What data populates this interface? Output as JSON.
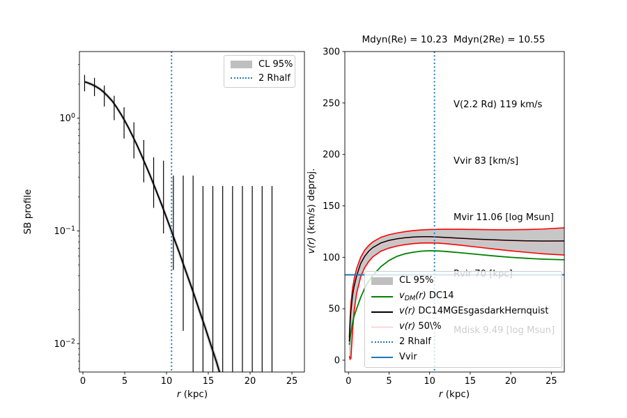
{
  "figure": {
    "bg": "#ffffff"
  },
  "colors": {
    "blue": "#1f77b4",
    "green": "#008000",
    "red": "#ff0000",
    "pink": "#ffb6c1",
    "band": "rgba(130,130,130,0.45)",
    "black": "#000000"
  },
  "left_panel": {
    "ylabel": "SB profile",
    "xlabel_math": "r",
    "xlabel_rest": " (kpc)",
    "x_ticks": [
      0,
      5,
      10,
      15,
      20,
      25
    ],
    "y_ticks_exp": [
      0,
      -1,
      -2
    ],
    "legend": {
      "items": [
        {
          "rest": "CL 95%"
        },
        {
          "rest": "2 Rhalf"
        }
      ]
    }
  },
  "right_panel": {
    "title": "Mdyn(Re) = 10.23  Mdyn(2Re) = 10.55",
    "ylabel_math": "v(r)",
    "ylabel_rest": " (km/s) deproj.",
    "xlabel_math": "r",
    "xlabel_rest": " (kpc)",
    "annotations": [
      "V(2.2 Rd) 119 km/s",
      "Vvir 83 [km/s]",
      "Mvir 11.06 [log Msun]",
      "Rvir 70 [kpc]",
      "Mdisk 9.49 [log Msun]"
    ],
    "x_ticks": [
      0,
      5,
      10,
      15,
      20,
      25
    ],
    "y_ticks": [
      0,
      50,
      100,
      150,
      200,
      250,
      300
    ],
    "legend": {
      "items": [
        {
          "math": "",
          "sub": "",
          "math2": "",
          "rest": "CL 95%"
        },
        {
          "math": "v",
          "sub": "DM",
          "math2": "(r)",
          "rest": " DC14"
        },
        {
          "math": "v",
          "sub": "",
          "math2": "(r)",
          "rest": " DC14MGEsgasdarkHernquist"
        },
        {
          "math": "v",
          "sub": "",
          "math2": "(r)",
          "rest": " 50\\%"
        },
        {
          "math": "",
          "sub": "",
          "math2": "",
          "rest": "2 Rhalf"
        },
        {
          "math": "",
          "sub": "",
          "math2": "",
          "rest": "Vvir"
        }
      ]
    }
  },
  "chart_data": [
    {
      "type": "line",
      "panel": "left",
      "title": "",
      "xlabel": "r (kpc)",
      "ylabel": "SB profile",
      "xscale": "linear",
      "yscale": "log",
      "xlim": [
        -0.42,
        26.5
      ],
      "ylim": [
        0.0056,
        3.9
      ],
      "vline_2rhalf": 10.6,
      "model_r": [
        0.2,
        0.5,
        1,
        1.5,
        2,
        2.5,
        3,
        3.5,
        4,
        4.5,
        5,
        5.5,
        6,
        6.5,
        7,
        7.5,
        8,
        8.5,
        9,
        9.5,
        10,
        10.5,
        11,
        11.5,
        12,
        12.5,
        13,
        13.5,
        14,
        14.5,
        15,
        15.5,
        16,
        16.6
      ],
      "model_sb": [
        2.1,
        2.07,
        2.0,
        1.92,
        1.82,
        1.7,
        1.56,
        1.42,
        1.26,
        1.1,
        0.95,
        0.81,
        0.68,
        0.57,
        0.47,
        0.385,
        0.315,
        0.255,
        0.205,
        0.165,
        0.131,
        0.104,
        0.082,
        0.065,
        0.051,
        0.04,
        0.0315,
        0.0245,
        0.019,
        0.0148,
        0.0114,
        0.0088,
        0.0068,
        0.0048
      ],
      "band_hi": [
        2.16,
        2.14,
        2.07,
        1.99,
        1.89,
        1.77,
        1.63,
        1.49,
        1.32,
        1.16,
        1.0,
        0.857,
        0.721,
        0.606,
        0.5,
        0.411,
        0.337,
        0.274,
        0.22,
        0.178,
        0.141,
        0.113,
        0.089,
        0.0707,
        0.0556,
        0.0437,
        0.0345,
        0.0269,
        0.0209,
        0.0163,
        0.0126,
        0.0098,
        0.0076,
        0.0054
      ],
      "band_lo": [
        2.04,
        2.0,
        1.93,
        1.85,
        1.75,
        1.63,
        1.49,
        1.36,
        1.2,
        1.045,
        0.9,
        0.766,
        0.642,
        0.536,
        0.441,
        0.361,
        0.294,
        0.238,
        0.191,
        0.153,
        0.121,
        0.096,
        0.0756,
        0.0598,
        0.0468,
        0.0366,
        0.0288,
        0.0223,
        0.0173,
        0.0134,
        0.0103,
        0.0079,
        0.0061,
        0.0042
      ],
      "errorbars": [
        [
          0.2,
          1.73,
          2.42
        ],
        [
          1.38,
          1.57,
          2.28
        ],
        [
          2.56,
          1.27,
          1.95
        ],
        [
          3.74,
          0.96,
          1.58
        ],
        [
          4.92,
          0.66,
          1.25
        ],
        [
          6.1,
          0.44,
          0.92
        ],
        [
          7.28,
          0.27,
          0.64
        ],
        [
          8.46,
          0.16,
          0.45
        ],
        [
          9.64,
          0.095,
          0.42
        ],
        [
          10.82,
          0.045,
          0.31
        ],
        [
          12.0,
          0.013,
          0.31
        ],
        [
          13.18,
          0.004,
          0.31
        ],
        [
          14.36,
          0.001,
          0.25
        ],
        [
          15.54,
          0.001,
          0.25
        ],
        [
          16.72,
          0.001,
          0.25
        ],
        [
          17.9,
          0.001,
          0.25
        ],
        [
          19.08,
          0.001,
          0.25
        ],
        [
          20.26,
          0.001,
          0.25
        ],
        [
          21.44,
          0.001,
          0.25
        ],
        [
          22.62,
          0.001,
          0.25
        ]
      ]
    },
    {
      "type": "line",
      "panel": "right",
      "title": "Mdyn(Re) = 10.23  Mdyn(2Re) = 10.55",
      "xlabel": "r (kpc)",
      "ylabel": "v(r) (km/s) deproj.",
      "xlim": [
        -0.45,
        26.6
      ],
      "ylim": [
        -11.5,
        300
      ],
      "hline_vvir": 83,
      "vline_2rhalf": 10.6,
      "x": [
        0.1,
        0.2,
        0.3,
        0.5,
        0.7,
        1,
        1.5,
        2,
        2.5,
        3,
        4,
        5,
        6,
        7,
        8,
        9,
        10,
        11,
        12,
        14,
        16,
        18,
        20,
        22,
        24,
        26.6
      ],
      "series": [
        {
          "name": "CL95 upper (red)",
          "values": [
            22,
            42,
            55,
            70,
            79,
            89,
            100,
            107,
            111.5,
            115,
            119.5,
            122,
            123.7,
            125,
            126,
            126.6,
            127,
            127.2,
            127.3,
            127.2,
            127,
            126.8,
            126.8,
            127,
            127.5,
            128.6
          ]
        },
        {
          "name": "CL95 lower (red)",
          "values": [
            4,
            1,
            2,
            28,
            48,
            65,
            81,
            90,
            96,
            100.5,
            106,
            109,
            111,
            112.4,
            113.3,
            113.9,
            114,
            113.8,
            113.2,
            111.6,
            109.8,
            108,
            106.3,
            104.8,
            103.4,
            102.2
          ]
        },
        {
          "name": "vDM(r) DC14 (green)",
          "values": [
            15,
            22,
            27,
            36,
            43,
            50,
            61,
            70,
            77,
            82.5,
            91,
            97,
            101,
            103.5,
            105,
            106,
            106.4,
            106.2,
            105.7,
            104.3,
            102.8,
            101.3,
            100,
            99,
            98.2,
            97.6
          ]
        },
        {
          "name": "v(r) 50% (pink)",
          "values": [
            16.8,
            34.8,
            46.8,
            61.8,
            70.8,
            80.8,
            92.8,
            99.8,
            104.8,
            108.3,
            112.8,
            115.3,
            116.8,
            117.8,
            118.5,
            118.8,
            118.8,
            118.5,
            118.1,
            117.2,
            116.4,
            115.8,
            115.2,
            114.8,
            114.6,
            114.7
          ]
        },
        {
          "name": "v(r) DC14MGEsgasdarkHernquist (black)",
          "values": [
            18,
            36,
            48,
            63,
            72,
            82,
            94,
            101,
            106,
            109.5,
            114,
            116.5,
            118,
            119,
            119.7,
            120,
            120,
            119.7,
            119.3,
            118.4,
            117.6,
            117,
            116.4,
            116,
            115.8,
            115.9
          ]
        }
      ]
    }
  ]
}
